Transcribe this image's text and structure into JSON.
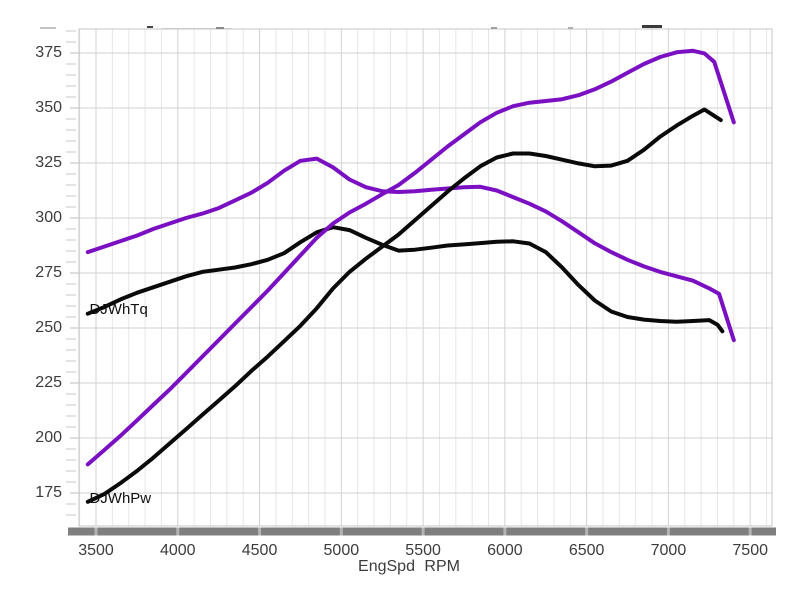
{
  "chart_data": {
    "type": "line",
    "title": "",
    "xlabel": "EngSpd RPM",
    "ylabel": "",
    "x_ticks": [
      3500,
      4000,
      4500,
      5000,
      5500,
      6000,
      6500,
      7000,
      7500
    ],
    "y_ticks": [
      375,
      350,
      325,
      300,
      275,
      250,
      225,
      200,
      175
    ],
    "x_minor_step": 100,
    "y_minor_step": 5,
    "xlim": [
      3396,
      7634
    ],
    "ylim": [
      160,
      386
    ],
    "grid": "on",
    "colors": {
      "purple_run": "#7a10c2",
      "black_run": "#0a0a0a",
      "tick_bar": "#7f7f7f"
    },
    "series": [
      {
        "name": "DJWhTq",
        "variant": "purple",
        "color": "#7a10c2",
        "points": [
          [
            3450,
            284.5
          ],
          [
            3550,
            287
          ],
          [
            3650,
            289.5
          ],
          [
            3750,
            292
          ],
          [
            3850,
            295
          ],
          [
            3950,
            297.5
          ],
          [
            4050,
            300
          ],
          [
            4150,
            302
          ],
          [
            4250,
            304.5
          ],
          [
            4350,
            308
          ],
          [
            4450,
            311.5
          ],
          [
            4550,
            316
          ],
          [
            4650,
            321.5
          ],
          [
            4750,
            326
          ],
          [
            4850,
            327
          ],
          [
            4950,
            323
          ],
          [
            5050,
            317.5
          ],
          [
            5150,
            314
          ],
          [
            5250,
            312.2
          ],
          [
            5350,
            311.8
          ],
          [
            5450,
            312.2
          ],
          [
            5550,
            312.8
          ],
          [
            5650,
            313.4
          ],
          [
            5750,
            314
          ],
          [
            5850,
            314.2
          ],
          [
            5950,
            312.5
          ],
          [
            6050,
            309.5
          ],
          [
            6150,
            306.5
          ],
          [
            6250,
            303
          ],
          [
            6350,
            298.5
          ],
          [
            6450,
            293.5
          ],
          [
            6550,
            288.5
          ],
          [
            6650,
            284.5
          ],
          [
            6750,
            281
          ],
          [
            6850,
            278
          ],
          [
            6950,
            275.5
          ],
          [
            7050,
            273.5
          ],
          [
            7150,
            271.5
          ],
          [
            7250,
            268
          ],
          [
            7310,
            265.5
          ],
          [
            7400,
            244.5
          ]
        ]
      },
      {
        "name": "DJWhTq",
        "variant": "black",
        "color": "#0a0a0a",
        "points": [
          [
            3450,
            256.5
          ],
          [
            3550,
            259.5
          ],
          [
            3650,
            263
          ],
          [
            3750,
            266
          ],
          [
            3850,
            268.5
          ],
          [
            3950,
            271
          ],
          [
            4050,
            273.5
          ],
          [
            4150,
            275.5
          ],
          [
            4250,
            276.5
          ],
          [
            4350,
            277.5
          ],
          [
            4450,
            279
          ],
          [
            4550,
            281
          ],
          [
            4650,
            284
          ],
          [
            4750,
            289
          ],
          [
            4850,
            293.5
          ],
          [
            4950,
            295.8
          ],
          [
            5050,
            294.5
          ],
          [
            5150,
            291
          ],
          [
            5250,
            287.8
          ],
          [
            5350,
            285.2
          ],
          [
            5450,
            285.6
          ],
          [
            5550,
            286.5
          ],
          [
            5650,
            287.5
          ],
          [
            5750,
            288
          ],
          [
            5850,
            288.6
          ],
          [
            5950,
            289.2
          ],
          [
            6050,
            289.4
          ],
          [
            6150,
            288.4
          ],
          [
            6250,
            284.5
          ],
          [
            6350,
            277.5
          ],
          [
            6450,
            269.5
          ],
          [
            6550,
            262.5
          ],
          [
            6650,
            257.5
          ],
          [
            6750,
            255
          ],
          [
            6850,
            253.8
          ],
          [
            6950,
            253.2
          ],
          [
            7050,
            252.8
          ],
          [
            7150,
            253.2
          ],
          [
            7250,
            253.6
          ],
          [
            7300,
            251.5
          ],
          [
            7330,
            248.5
          ]
        ]
      },
      {
        "name": "DJWhPw",
        "variant": "purple",
        "color": "#7a10c2",
        "points": [
          [
            3450,
            188
          ],
          [
            3550,
            194.5
          ],
          [
            3650,
            201
          ],
          [
            3750,
            208
          ],
          [
            3850,
            215
          ],
          [
            3950,
            222
          ],
          [
            4050,
            229.5
          ],
          [
            4150,
            237
          ],
          [
            4250,
            244.5
          ],
          [
            4350,
            252
          ],
          [
            4450,
            259.5
          ],
          [
            4550,
            267
          ],
          [
            4650,
            275
          ],
          [
            4750,
            283
          ],
          [
            4850,
            291
          ],
          [
            4950,
            297.5
          ],
          [
            5050,
            302.5
          ],
          [
            5150,
            306.5
          ],
          [
            5250,
            310.8
          ],
          [
            5350,
            315
          ],
          [
            5450,
            320.5
          ],
          [
            5550,
            326.5
          ],
          [
            5650,
            332.5
          ],
          [
            5750,
            338
          ],
          [
            5850,
            343.5
          ],
          [
            5950,
            347.8
          ],
          [
            6050,
            350.8
          ],
          [
            6150,
            352.4
          ],
          [
            6250,
            353.2
          ],
          [
            6350,
            354
          ],
          [
            6450,
            355.8
          ],
          [
            6550,
            358.5
          ],
          [
            6650,
            362
          ],
          [
            6750,
            366
          ],
          [
            6850,
            370
          ],
          [
            6950,
            373.2
          ],
          [
            7050,
            375.3
          ],
          [
            7150,
            376
          ],
          [
            7220,
            374.8
          ],
          [
            7280,
            371
          ],
          [
            7400,
            343.5
          ]
        ]
      },
      {
        "name": "DJWhPw",
        "variant": "black",
        "color": "#0a0a0a",
        "points": [
          [
            3450,
            171
          ],
          [
            3550,
            174.5
          ],
          [
            3650,
            179.5
          ],
          [
            3750,
            185
          ],
          [
            3850,
            191
          ],
          [
            3950,
            197.5
          ],
          [
            4050,
            204
          ],
          [
            4150,
            210.5
          ],
          [
            4250,
            217
          ],
          [
            4350,
            223.5
          ],
          [
            4450,
            230.5
          ],
          [
            4550,
            237
          ],
          [
            4650,
            244
          ],
          [
            4750,
            251
          ],
          [
            4850,
            259
          ],
          [
            4950,
            268
          ],
          [
            5050,
            275.5
          ],
          [
            5150,
            281.5
          ],
          [
            5250,
            287
          ],
          [
            5350,
            292.5
          ],
          [
            5450,
            299
          ],
          [
            5550,
            305.5
          ],
          [
            5650,
            312
          ],
          [
            5750,
            318
          ],
          [
            5850,
            323.5
          ],
          [
            5950,
            327.5
          ],
          [
            6050,
            329.3
          ],
          [
            6150,
            329.3
          ],
          [
            6250,
            328.2
          ],
          [
            6350,
            326.5
          ],
          [
            6450,
            324.8
          ],
          [
            6550,
            323.5
          ],
          [
            6650,
            323.8
          ],
          [
            6750,
            326
          ],
          [
            6850,
            331
          ],
          [
            6950,
            337
          ],
          [
            7050,
            342
          ],
          [
            7150,
            346.5
          ],
          [
            7220,
            349.3
          ],
          [
            7320,
            344.5
          ]
        ]
      }
    ],
    "curve_labels": [
      {
        "text": "DJWhTq",
        "rpm": 3460,
        "value": 258
      },
      {
        "text": "DJWhPw",
        "rpm": 3460,
        "value": 172.5
      }
    ]
  }
}
